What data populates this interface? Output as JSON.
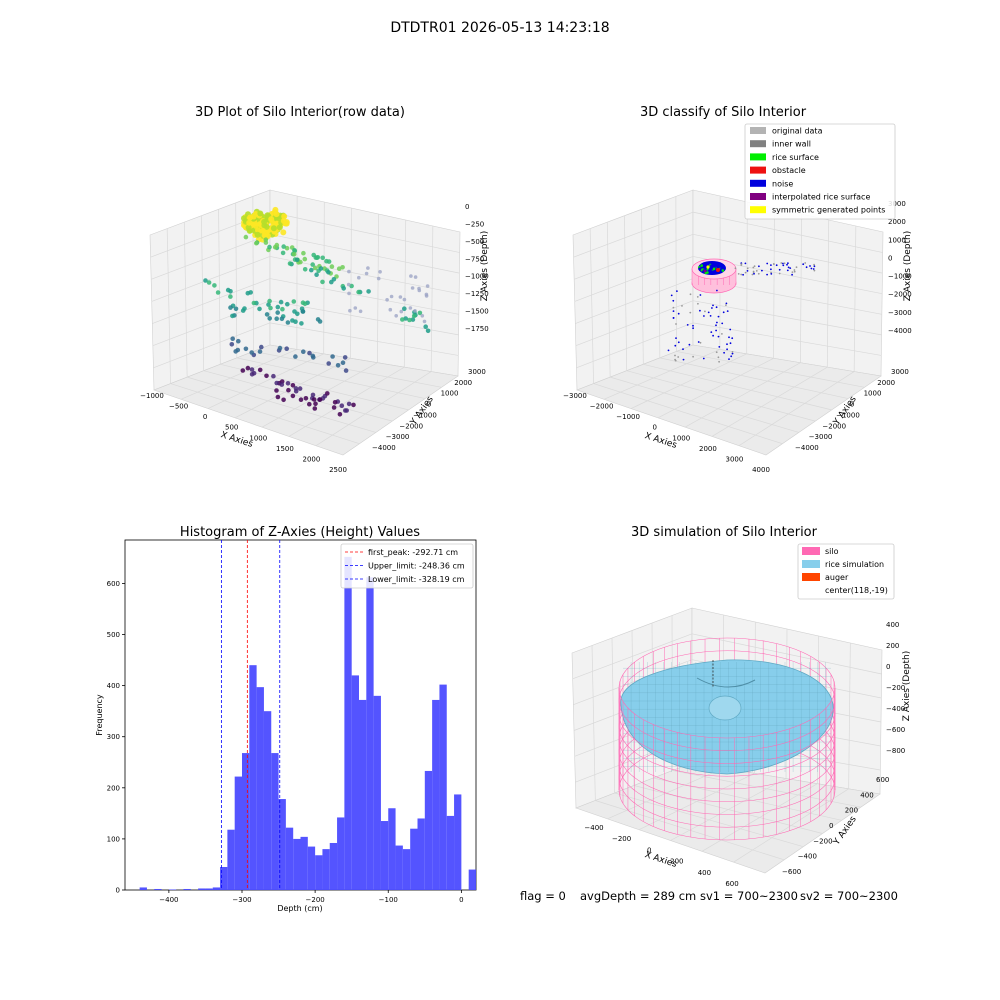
{
  "figure_title": "DTDTR01 2026-05-13 14:23:18",
  "status_line": {
    "flag": "flag = 0",
    "avg_depth": "avgDepth = 289 cm",
    "sv1": "sv1 = 700~2300",
    "sv2": "sv2 = 700~2300"
  },
  "chart_data": [
    {
      "type": "scatter",
      "title": "3D Plot of Silo Interior(row data)",
      "xlabel": "X Axies",
      "ylabel": "Y Axies",
      "zlabel": "Z Axies (Depth)",
      "x_ticks": [
        "−1000",
        "−500",
        "0",
        "500",
        "1000",
        "1500",
        "2000",
        "2500"
      ],
      "y_ticks": [
        "−4000",
        "−3000",
        "−2000",
        "−1000",
        "0",
        "1000",
        "2000",
        "3000"
      ],
      "z_ticks": [
        "0",
        "−250",
        "−500",
        "−750",
        "−1000",
        "−1250",
        "−1500",
        "−1750"
      ],
      "colormap": "viridis",
      "grid": true
    },
    {
      "type": "scatter",
      "title": "3D classify of Silo Interior",
      "xlabel": "X Axies",
      "ylabel": "Y Axies",
      "zlabel": "Z Axies (Depth)",
      "x_ticks": [
        "−3000",
        "−2000",
        "−1000",
        "0",
        "1000",
        "2000",
        "3000",
        "4000"
      ],
      "y_ticks": [
        "−4000",
        "−3000",
        "−2000",
        "−1000",
        "0",
        "1000",
        "2000",
        "3000"
      ],
      "z_ticks": [
        "3000",
        "2000",
        "1000",
        "0",
        "−1000",
        "−2000",
        "−3000",
        "−4000"
      ],
      "legend_position": "top-right",
      "legend": [
        {
          "label": "original data",
          "color": "#b3b3b3"
        },
        {
          "label": "inner wall",
          "color": "#808080"
        },
        {
          "label": "rice surface",
          "color": "#00ee00"
        },
        {
          "label": "obstacle",
          "color": "#ee1111"
        },
        {
          "label": "noise",
          "color": "#0000dd"
        },
        {
          "label": "interpolated rice surface",
          "color": "#800080"
        },
        {
          "label": "symmetric generated points",
          "color": "#ffff00"
        }
      ],
      "grid": true
    },
    {
      "type": "bar",
      "title": "Histogram of Z-Axies (Height) Values",
      "xlabel": "Depth (cm)",
      "ylabel": "Frequency",
      "xlim": [
        -460,
        20
      ],
      "ylim": [
        0,
        685
      ],
      "x_ticks": [
        -400,
        -300,
        -200,
        -100,
        0
      ],
      "y_ticks": [
        0,
        100,
        200,
        300,
        400,
        500,
        600
      ],
      "bar_color": "#4b4bff",
      "bins": [
        [
          -440,
          5
        ],
        [
          -420,
          2
        ],
        [
          -400,
          1
        ],
        [
          -380,
          2
        ],
        [
          -360,
          3
        ],
        [
          -350,
          3
        ],
        [
          -340,
          5
        ],
        [
          -330,
          45
        ],
        [
          -320,
          118
        ],
        [
          -310,
          222
        ],
        [
          -300,
          268
        ],
        [
          -290,
          440
        ],
        [
          -280,
          397
        ],
        [
          -270,
          350
        ],
        [
          -260,
          268
        ],
        [
          -250,
          178
        ],
        [
          -240,
          122
        ],
        [
          -230,
          100
        ],
        [
          -220,
          104
        ],
        [
          -210,
          85
        ],
        [
          -200,
          68
        ],
        [
          -190,
          80
        ],
        [
          -180,
          92
        ],
        [
          -170,
          142
        ],
        [
          -160,
          652
        ],
        [
          -150,
          420
        ],
        [
          -140,
          372
        ],
        [
          -130,
          612
        ],
        [
          -120,
          380
        ],
        [
          -110,
          135
        ],
        [
          -100,
          160
        ],
        [
          -90,
          87
        ],
        [
          -80,
          80
        ],
        [
          -70,
          120
        ],
        [
          -60,
          140
        ],
        [
          -50,
          233
        ],
        [
          -40,
          372
        ],
        [
          -30,
          402
        ],
        [
          -20,
          145
        ],
        [
          -10,
          187
        ],
        [
          0,
          0
        ],
        [
          10,
          40
        ]
      ],
      "bin_width": 10,
      "vlines": [
        {
          "label": "first_peak: -292.71 cm",
          "x": -292.71,
          "color": "#ff0000"
        },
        {
          "label": "Upper_limit: -248.36 cm",
          "x": -248.36,
          "color": "#0000ff"
        },
        {
          "label": "Lower_limit: -328.19 cm",
          "x": -328.19,
          "color": "#0000ff"
        }
      ],
      "legend_position": "top-right"
    },
    {
      "type": "scatter",
      "title": "3D simulation of Silo Interior",
      "xlabel": "X Axies",
      "ylabel": "Y Axies",
      "zlabel": "Z Axies (Depth)",
      "x_ticks": [
        "−400",
        "−200",
        "0",
        "200",
        "400",
        "600"
      ],
      "y_ticks": [
        "−600",
        "−400",
        "−200",
        "0",
        "200",
        "400",
        "600"
      ],
      "z_ticks": [
        "400",
        "200",
        "0",
        "−200",
        "−400",
        "−600",
        "−800"
      ],
      "legend_position": "top-right",
      "legend": [
        {
          "label": "silo",
          "color": "#ff69b4"
        },
        {
          "label": "rice simulation",
          "color": "#87ceeb"
        },
        {
          "label": "auger",
          "color": "#ff4500"
        },
        {
          "label": "center(118,-19)",
          "color": ""
        }
      ],
      "grid": true
    }
  ]
}
